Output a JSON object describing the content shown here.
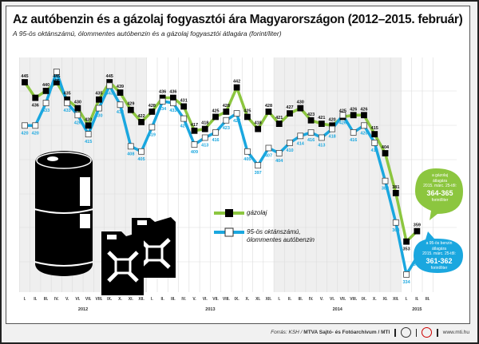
{
  "header": {
    "title": "Az autóbenzin és a gázolaj fogyasztói ára Magyarországon (2012–2015. február)",
    "subtitle": "A 95-ös oktánszámú, ólommentes autóbenzin és a gázolaj fogyasztói átlagára (forint/liter)"
  },
  "legend": {
    "diesel": "gázolaj",
    "petrol_line1": "95-ös oktánszámú,",
    "petrol_line2": "ólommentes autóbenzin"
  },
  "callouts": {
    "diesel": {
      "l1": "a gázolaj",
      "l2": "átlagára",
      "l3": "2015. márc. 25-től:",
      "value": "364-365",
      "unit": "forint/liter"
    },
    "petrol": {
      "l1": "a 95-ös benzin",
      "l2": "átlagára",
      "l3": "2015. márc. 25-től:",
      "value": "361-362",
      "unit": "forint/liter"
    }
  },
  "footer": {
    "source_label": "Forrás: KSH / ",
    "source_name": "MTVA Sajtó- és Fotóarchívum / MTI",
    "url": "www.mti.hu"
  },
  "colors": {
    "diesel": "#8cc63f",
    "petrol": "#1aa7df",
    "marker": "#000000"
  },
  "chart_data": {
    "type": "line",
    "title": "Az autóbenzin és a gázolaj fogyasztói ára Magyarországon (2012–2015. február)",
    "subtitle": "A 95-ös oktánszámú, ólommentes autóbenzin és a gázolaj fogyasztói átlagára (forint/liter)",
    "xlabel": "",
    "ylabel": "forint/liter",
    "ylim": [
      320,
      460
    ],
    "grid": true,
    "legend_position": "center",
    "categories": [
      "I.",
      "II.",
      "III.",
      "IV.",
      "V.",
      "VI.",
      "VII.",
      "VIII.",
      "IX.",
      "X.",
      "XI.",
      "XII.",
      "I.",
      "II.",
      "III.",
      "IV.",
      "V.",
      "VI.",
      "VII.",
      "VIII.",
      "IX.",
      "X.",
      "XI.",
      "XII.",
      "I.",
      "II.",
      "III.",
      "IV.",
      "V.",
      "VI.",
      "VII.",
      "VIII.",
      "IX.",
      "X.",
      "XI.",
      "XII.",
      "I.",
      "II.",
      "III."
    ],
    "years": [
      {
        "label": "2012",
        "start": 0,
        "end": 11
      },
      {
        "label": "2013",
        "start": 12,
        "end": 23
      },
      {
        "label": "2014",
        "start": 24,
        "end": 35
      },
      {
        "label": "2015",
        "start": 36,
        "end": 38
      }
    ],
    "series": [
      {
        "name": "gázolaj",
        "values": [
          445,
          436,
          440,
          445,
          435,
          430,
          420,
          435,
          445,
          439,
          429,
          422,
          428,
          436,
          436,
          431,
          417,
          418,
          425,
          428,
          442,
          425,
          418,
          428,
          421,
          427,
          430,
          423,
          421,
          420,
          425,
          426,
          426,
          415,
          404,
          381,
          353,
          359
        ]
      },
      {
        "name": "95-ös oktánszámú, ólommentes autóbenzin",
        "values": [
          420,
          420,
          433,
          451,
          433,
          426,
          415,
          430,
          443,
          432,
          408,
          405,
          419,
          434,
          433,
          424,
          409,
          413,
          416,
          423,
          427,
          405,
          397,
          407,
          404,
          410,
          414,
          416,
          413,
          418,
          426,
          416,
          420,
          410,
          388,
          364,
          334,
          344
        ]
      }
    ],
    "annotations": [
      "a gázolaj átlagára 2015. márc. 25-től: 364-365 forint/liter",
      "a 95-ös benzin átlagára 2015. márc. 25-től: 361-362 forint/liter"
    ]
  }
}
